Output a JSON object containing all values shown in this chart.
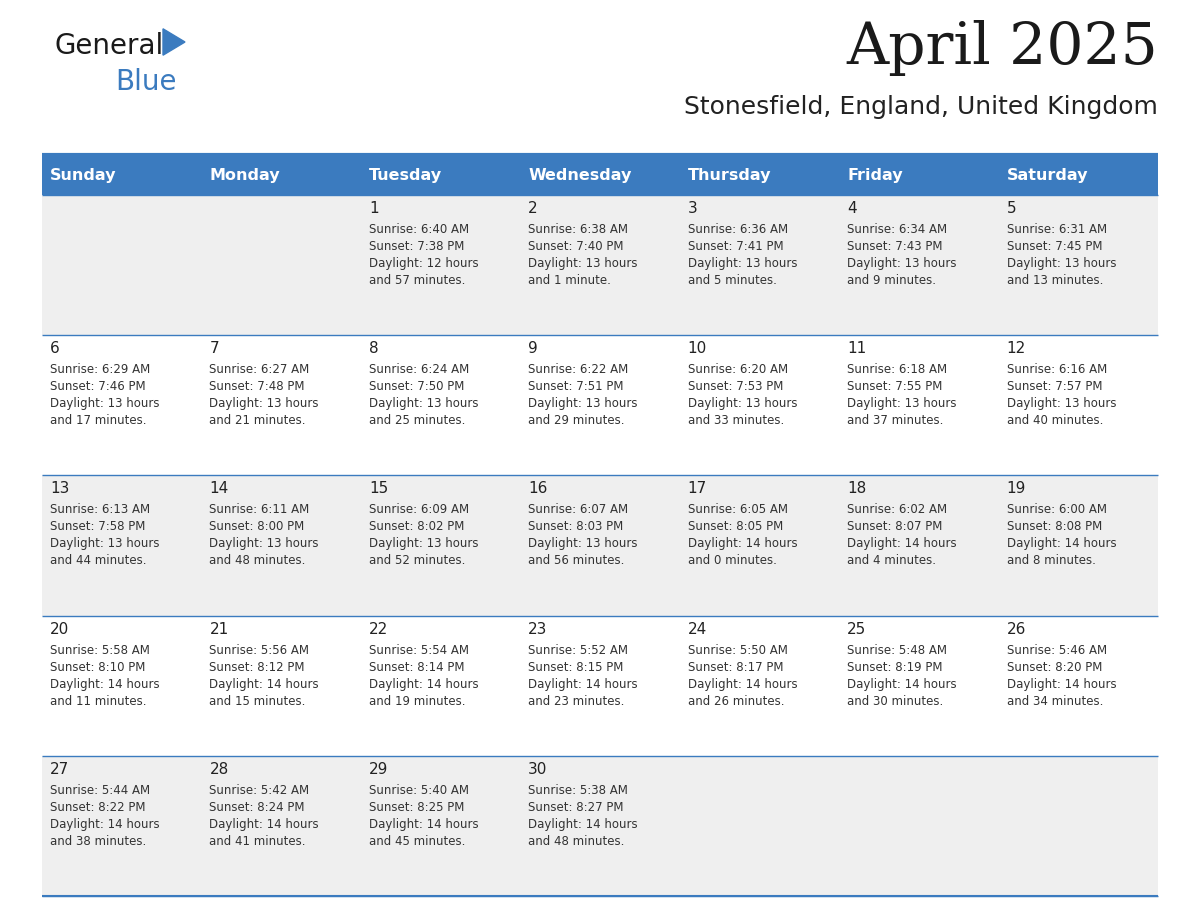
{
  "title": "April 2025",
  "subtitle": "Stonesfield, England, United Kingdom",
  "header_bg_color": "#3b7bbf",
  "header_text_color": "#ffffff",
  "row_bg_even": "#efefef",
  "row_bg_odd": "#ffffff",
  "border_color": "#3b7bbf",
  "text_color": "#333333",
  "day_names": [
    "Sunday",
    "Monday",
    "Tuesday",
    "Wednesday",
    "Thursday",
    "Friday",
    "Saturday"
  ],
  "days": [
    {
      "day": 1,
      "col": 2,
      "row": 0,
      "sunrise": "6:40 AM",
      "sunset": "7:38 PM",
      "dl1": "Daylight: 12 hours",
      "dl2": "and 57 minutes."
    },
    {
      "day": 2,
      "col": 3,
      "row": 0,
      "sunrise": "6:38 AM",
      "sunset": "7:40 PM",
      "dl1": "Daylight: 13 hours",
      "dl2": "and 1 minute."
    },
    {
      "day": 3,
      "col": 4,
      "row": 0,
      "sunrise": "6:36 AM",
      "sunset": "7:41 PM",
      "dl1": "Daylight: 13 hours",
      "dl2": "and 5 minutes."
    },
    {
      "day": 4,
      "col": 5,
      "row": 0,
      "sunrise": "6:34 AM",
      "sunset": "7:43 PM",
      "dl1": "Daylight: 13 hours",
      "dl2": "and 9 minutes."
    },
    {
      "day": 5,
      "col": 6,
      "row": 0,
      "sunrise": "6:31 AM",
      "sunset": "7:45 PM",
      "dl1": "Daylight: 13 hours",
      "dl2": "and 13 minutes."
    },
    {
      "day": 6,
      "col": 0,
      "row": 1,
      "sunrise": "6:29 AM",
      "sunset": "7:46 PM",
      "dl1": "Daylight: 13 hours",
      "dl2": "and 17 minutes."
    },
    {
      "day": 7,
      "col": 1,
      "row": 1,
      "sunrise": "6:27 AM",
      "sunset": "7:48 PM",
      "dl1": "Daylight: 13 hours",
      "dl2": "and 21 minutes."
    },
    {
      "day": 8,
      "col": 2,
      "row": 1,
      "sunrise": "6:24 AM",
      "sunset": "7:50 PM",
      "dl1": "Daylight: 13 hours",
      "dl2": "and 25 minutes."
    },
    {
      "day": 9,
      "col": 3,
      "row": 1,
      "sunrise": "6:22 AM",
      "sunset": "7:51 PM",
      "dl1": "Daylight: 13 hours",
      "dl2": "and 29 minutes."
    },
    {
      "day": 10,
      "col": 4,
      "row": 1,
      "sunrise": "6:20 AM",
      "sunset": "7:53 PM",
      "dl1": "Daylight: 13 hours",
      "dl2": "and 33 minutes."
    },
    {
      "day": 11,
      "col": 5,
      "row": 1,
      "sunrise": "6:18 AM",
      "sunset": "7:55 PM",
      "dl1": "Daylight: 13 hours",
      "dl2": "and 37 minutes."
    },
    {
      "day": 12,
      "col": 6,
      "row": 1,
      "sunrise": "6:16 AM",
      "sunset": "7:57 PM",
      "dl1": "Daylight: 13 hours",
      "dl2": "and 40 minutes."
    },
    {
      "day": 13,
      "col": 0,
      "row": 2,
      "sunrise": "6:13 AM",
      "sunset": "7:58 PM",
      "dl1": "Daylight: 13 hours",
      "dl2": "and 44 minutes."
    },
    {
      "day": 14,
      "col": 1,
      "row": 2,
      "sunrise": "6:11 AM",
      "sunset": "8:00 PM",
      "dl1": "Daylight: 13 hours",
      "dl2": "and 48 minutes."
    },
    {
      "day": 15,
      "col": 2,
      "row": 2,
      "sunrise": "6:09 AM",
      "sunset": "8:02 PM",
      "dl1": "Daylight: 13 hours",
      "dl2": "and 52 minutes."
    },
    {
      "day": 16,
      "col": 3,
      "row": 2,
      "sunrise": "6:07 AM",
      "sunset": "8:03 PM",
      "dl1": "Daylight: 13 hours",
      "dl2": "and 56 minutes."
    },
    {
      "day": 17,
      "col": 4,
      "row": 2,
      "sunrise": "6:05 AM",
      "sunset": "8:05 PM",
      "dl1": "Daylight: 14 hours",
      "dl2": "and 0 minutes."
    },
    {
      "day": 18,
      "col": 5,
      "row": 2,
      "sunrise": "6:02 AM",
      "sunset": "8:07 PM",
      "dl1": "Daylight: 14 hours",
      "dl2": "and 4 minutes."
    },
    {
      "day": 19,
      "col": 6,
      "row": 2,
      "sunrise": "6:00 AM",
      "sunset": "8:08 PM",
      "dl1": "Daylight: 14 hours",
      "dl2": "and 8 minutes."
    },
    {
      "day": 20,
      "col": 0,
      "row": 3,
      "sunrise": "5:58 AM",
      "sunset": "8:10 PM",
      "dl1": "Daylight: 14 hours",
      "dl2": "and 11 minutes."
    },
    {
      "day": 21,
      "col": 1,
      "row": 3,
      "sunrise": "5:56 AM",
      "sunset": "8:12 PM",
      "dl1": "Daylight: 14 hours",
      "dl2": "and 15 minutes."
    },
    {
      "day": 22,
      "col": 2,
      "row": 3,
      "sunrise": "5:54 AM",
      "sunset": "8:14 PM",
      "dl1": "Daylight: 14 hours",
      "dl2": "and 19 minutes."
    },
    {
      "day": 23,
      "col": 3,
      "row": 3,
      "sunrise": "5:52 AM",
      "sunset": "8:15 PM",
      "dl1": "Daylight: 14 hours",
      "dl2": "and 23 minutes."
    },
    {
      "day": 24,
      "col": 4,
      "row": 3,
      "sunrise": "5:50 AM",
      "sunset": "8:17 PM",
      "dl1": "Daylight: 14 hours",
      "dl2": "and 26 minutes."
    },
    {
      "day": 25,
      "col": 5,
      "row": 3,
      "sunrise": "5:48 AM",
      "sunset": "8:19 PM",
      "dl1": "Daylight: 14 hours",
      "dl2": "and 30 minutes."
    },
    {
      "day": 26,
      "col": 6,
      "row": 3,
      "sunrise": "5:46 AM",
      "sunset": "8:20 PM",
      "dl1": "Daylight: 14 hours",
      "dl2": "and 34 minutes."
    },
    {
      "day": 27,
      "col": 0,
      "row": 4,
      "sunrise": "5:44 AM",
      "sunset": "8:22 PM",
      "dl1": "Daylight: 14 hours",
      "dl2": "and 38 minutes."
    },
    {
      "day": 28,
      "col": 1,
      "row": 4,
      "sunrise": "5:42 AM",
      "sunset": "8:24 PM",
      "dl1": "Daylight: 14 hours",
      "dl2": "and 41 minutes."
    },
    {
      "day": 29,
      "col": 2,
      "row": 4,
      "sunrise": "5:40 AM",
      "sunset": "8:25 PM",
      "dl1": "Daylight: 14 hours",
      "dl2": "and 45 minutes."
    },
    {
      "day": 30,
      "col": 3,
      "row": 4,
      "sunrise": "5:38 AM",
      "sunset": "8:27 PM",
      "dl1": "Daylight: 14 hours",
      "dl2": "and 48 minutes."
    }
  ]
}
